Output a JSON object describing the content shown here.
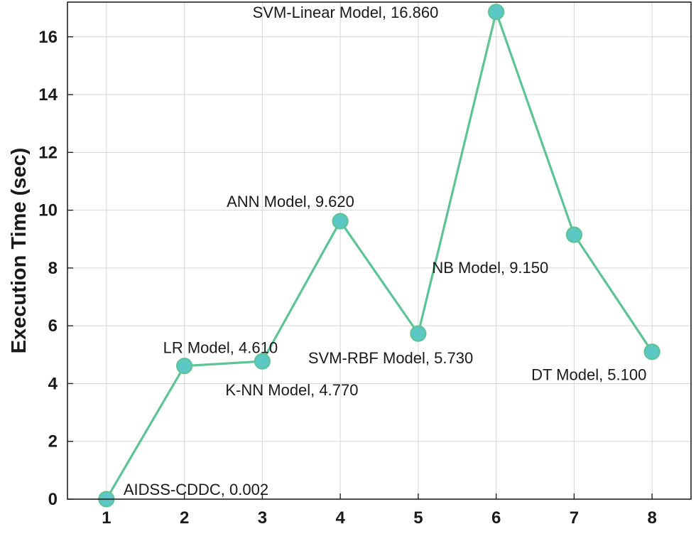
{
  "chart_data": {
    "type": "line",
    "title": "",
    "xlabel": "",
    "ylabel": "Execution Time (sec)",
    "x": [
      1,
      2,
      3,
      4,
      5,
      6,
      7,
      8
    ],
    "xlim": [
      0.5,
      8.5
    ],
    "ylim": [
      0,
      17.2
    ],
    "xticks": [
      "1",
      "2",
      "3",
      "4",
      "5",
      "6",
      "7",
      "8"
    ],
    "yticks": [
      "0",
      "2",
      "4",
      "6",
      "8",
      "10",
      "12",
      "14",
      "16"
    ],
    "grid": true,
    "colors": {
      "line": "#5ec395",
      "marker_fill": "#5bc8c6"
    },
    "series": [
      {
        "name": "Execution Time",
        "values": [
          0.002,
          4.61,
          4.77,
          9.62,
          5.73,
          16.86,
          9.15,
          5.1
        ],
        "labels": [
          "AIDSS-CDDC, 0.002",
          "LR Model, 4.610",
          "K-NN Model, 4.770",
          "ANN Model, 9.620",
          "SVM-RBF Model, 5.730",
          "SVM-Linear Model, 16.860",
          "NB Model, 9.150",
          "DT Model, 5.100"
        ]
      }
    ]
  }
}
